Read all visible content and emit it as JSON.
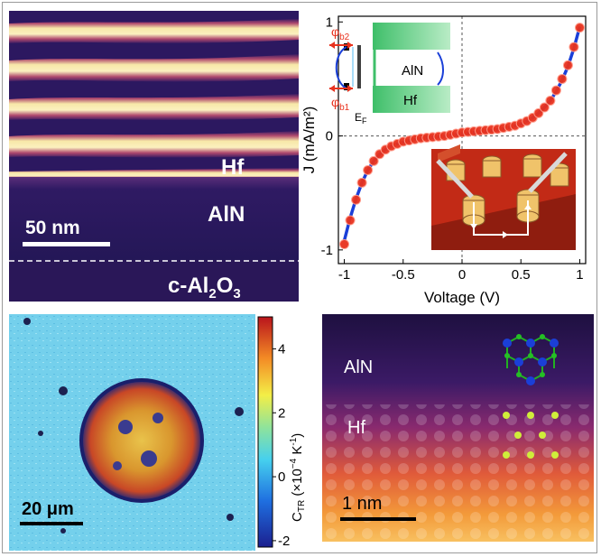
{
  "panel_a": {
    "layer_top": "Hf",
    "layer_mid": "AlN",
    "layer_bottom_main": "c-Al",
    "layer_bottom_sub2": "2",
    "layer_bottom_O": "O",
    "layer_bottom_sub3": "3",
    "scale": "50 nm"
  },
  "chart_data": {
    "type": "scatter",
    "xlabel": "Voltage (V)",
    "ylabel": "J (mA/m²)",
    "xlim": [
      -1.05,
      1.05
    ],
    "ylim": [
      -1.12,
      1.05
    ],
    "xticks": [
      "-1",
      "-0.5",
      "0",
      "0.5",
      "1"
    ],
    "yticks": [
      "-1",
      "0",
      "1"
    ],
    "series": [
      {
        "marker": "circle",
        "color": "#e8321e",
        "x": [
          -1.0,
          -0.95,
          -0.9,
          -0.85,
          -0.8,
          -0.75,
          -0.7,
          -0.65,
          -0.6,
          -0.55,
          -0.5,
          -0.45,
          -0.4,
          -0.35,
          -0.3,
          -0.25,
          -0.2,
          -0.15,
          -0.1,
          -0.05,
          0.0,
          0.05,
          0.1,
          0.15,
          0.2,
          0.25,
          0.3,
          0.35,
          0.4,
          0.45,
          0.5,
          0.55,
          0.6,
          0.65,
          0.7,
          0.75,
          0.8,
          0.85,
          0.9,
          0.95,
          1.0
        ],
        "y": [
          -0.95,
          -0.74,
          -0.56,
          -0.41,
          -0.3,
          -0.22,
          -0.16,
          -0.12,
          -0.09,
          -0.07,
          -0.05,
          -0.04,
          -0.03,
          -0.02,
          -0.015,
          -0.01,
          -0.005,
          0.0,
          0.01,
          0.02,
          0.03,
          0.035,
          0.04,
          0.045,
          0.05,
          0.055,
          0.06,
          0.07,
          0.08,
          0.09,
          0.11,
          0.13,
          0.16,
          0.2,
          0.25,
          0.31,
          0.4,
          0.5,
          0.62,
          0.78,
          0.95
        ]
      },
      {
        "marker": "line",
        "color": "#1a3fd8",
        "x": [
          -1.0,
          -0.95,
          -0.9,
          -0.85,
          -0.8,
          -0.75,
          -0.7,
          -0.65,
          -0.6,
          -0.55,
          -0.5,
          -0.4,
          -0.3,
          -0.2,
          -0.1,
          0.0,
          0.1,
          0.2,
          0.3,
          0.4,
          0.5,
          0.55,
          0.6,
          0.65,
          0.7,
          0.75,
          0.8,
          0.85,
          0.9,
          0.95,
          1.0
        ],
        "y": [
          -0.92,
          -0.72,
          -0.55,
          -0.41,
          -0.3,
          -0.22,
          -0.16,
          -0.12,
          -0.09,
          -0.07,
          -0.055,
          -0.03,
          -0.018,
          -0.008,
          0.005,
          0.02,
          0.03,
          0.042,
          0.055,
          0.075,
          0.105,
          0.13,
          0.16,
          0.2,
          0.25,
          0.31,
          0.39,
          0.49,
          0.61,
          0.77,
          0.96
        ]
      }
    ],
    "inset_band": {
      "phi_b2_main": "φ",
      "phi_b2_sub": "b2",
      "phi_b1_main": "φ",
      "phi_b1_sub": "b1",
      "ef_main": "E",
      "ef_sub": "F",
      "label_top": "AlN",
      "label_bottom": "Hf"
    }
  },
  "panel_c": {
    "colorbar_label_main": "C",
    "colorbar_label_sub": "TR",
    "colorbar_label_unit": " (×10",
    "colorbar_label_exp": "−4",
    "colorbar_label_end": " K",
    "colorbar_label_exp2": "-1",
    "colorbar_label_close": ")",
    "colorbar_ticks": [
      "4",
      "2",
      "0",
      "-2"
    ],
    "scale": "20 μm"
  },
  "panel_d": {
    "label_top": "AlN",
    "label_bottom": "Hf",
    "scale": "1 nm"
  }
}
